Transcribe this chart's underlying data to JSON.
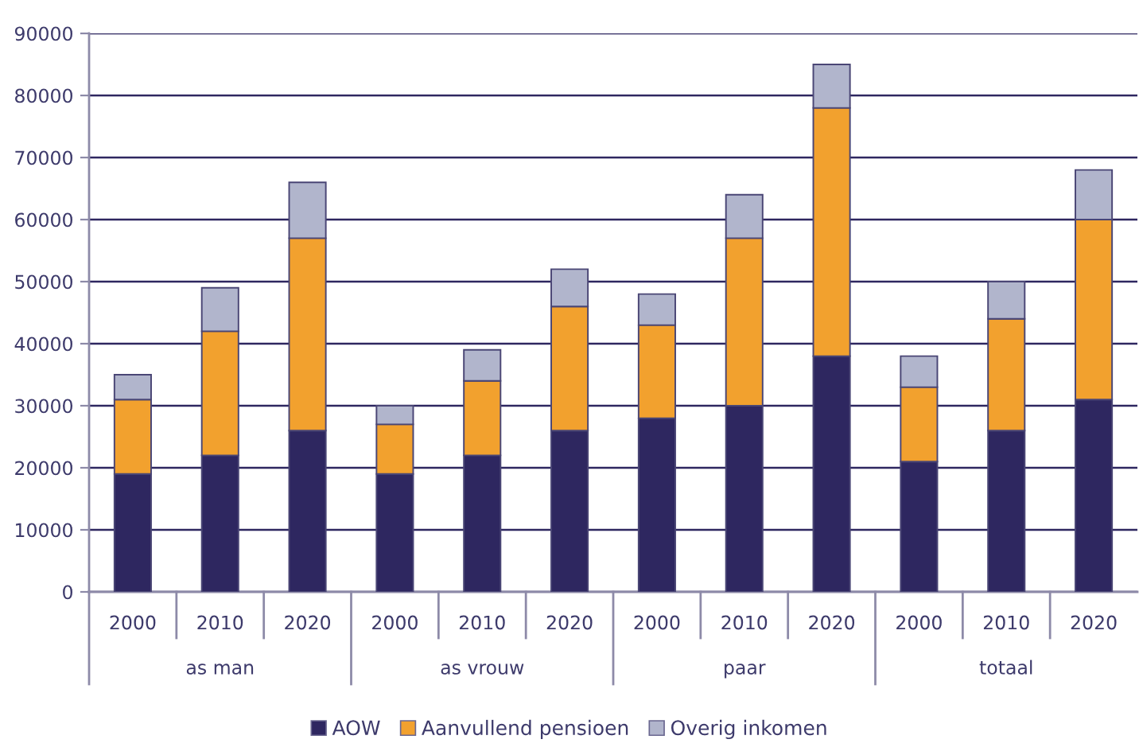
{
  "chart_data": {
    "type": "bar",
    "stacked": true,
    "categories": [
      "2000",
      "2010",
      "2020",
      "2000",
      "2010",
      "2020",
      "2000",
      "2010",
      "2020",
      "2000",
      "2010",
      "2020"
    ],
    "series": [
      {
        "name": "AOW",
        "color": "#2e2760",
        "values": [
          19000,
          22000,
          26000,
          19000,
          22000,
          26000,
          28000,
          30000,
          38000,
          21000,
          26000,
          31000
        ]
      },
      {
        "name": "Aanvullend pensioen",
        "color": "#f2a12e",
        "values": [
          12000,
          20000,
          31000,
          8000,
          12000,
          20000,
          15000,
          27000,
          40000,
          12000,
          18000,
          29000
        ]
      },
      {
        "name": "Overig inkomen",
        "color": "#b1b5cc",
        "values": [
          4000,
          7000,
          9000,
          3000,
          5000,
          6000,
          5000,
          7000,
          7000,
          5000,
          6000,
          8000
        ]
      }
    ],
    "ylim": [
      0,
      90000
    ],
    "yticks": [
      0,
      10000,
      20000,
      30000,
      40000,
      50000,
      60000,
      70000,
      80000,
      90000
    ],
    "grid": "y",
    "legend": "bottom",
    "annotations": [
      "as man",
      "as vrouw",
      "paar",
      "totaal"
    ]
  }
}
